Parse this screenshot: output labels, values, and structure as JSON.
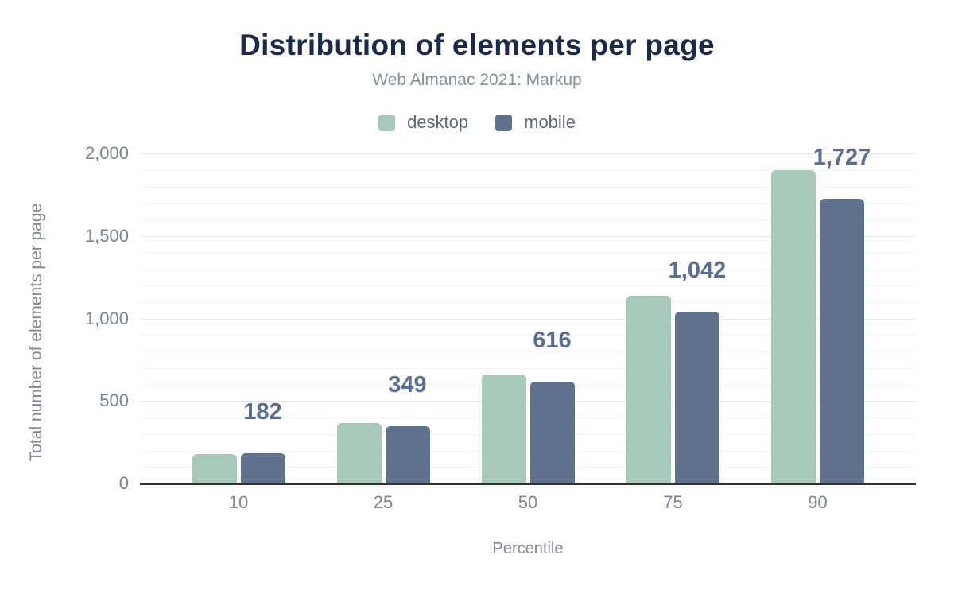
{
  "title": "Distribution of elements per page",
  "subtitle": "Web Almanac 2021: Markup",
  "legend": {
    "items": [
      {
        "label": "desktop",
        "color": "#a8c9ba"
      },
      {
        "label": "mobile",
        "color": "#5f718d"
      }
    ]
  },
  "colors": {
    "background": "#ffffff",
    "title": "#1b2a4a",
    "subtitle": "#898f99",
    "axis_text": "#7e848e",
    "axis_line": "#303030",
    "grid_minor": "#f4f4f4",
    "grid_major": "#e6e6e6",
    "data_label": "#5b6e92",
    "desktop": "#a8c9ba",
    "mobile": "#5f718d"
  },
  "chart_data": {
    "type": "bar",
    "title": "Distribution of elements per page",
    "subtitle": "Web Almanac 2021: Markup",
    "categories": [
      "10",
      "25",
      "50",
      "75",
      "90"
    ],
    "series": [
      {
        "name": "desktop",
        "color": "#a8c9ba",
        "values": [
          177,
          368,
          662,
          1140,
          1898
        ]
      },
      {
        "name": "mobile",
        "color": "#5f718d",
        "values": [
          182,
          349,
          616,
          1042,
          1727
        ],
        "data_labels": [
          "182",
          "349",
          "616",
          "1,042",
          "1,727"
        ]
      }
    ],
    "data_label_series": "mobile",
    "xlabel": "Percentile",
    "ylabel": "Total number of elements per page",
    "ylim": [
      0,
      2000
    ],
    "yticks": [
      {
        "value": 0,
        "label": "0"
      },
      {
        "value": 500,
        "label": "500"
      },
      {
        "value": 1000,
        "label": "1,000"
      },
      {
        "value": 1500,
        "label": "1,500"
      },
      {
        "value": 2000,
        "label": "2,000"
      }
    ],
    "grid": {
      "show": true,
      "minor_step": 100,
      "major_step": 500
    },
    "legend_position": "top"
  }
}
